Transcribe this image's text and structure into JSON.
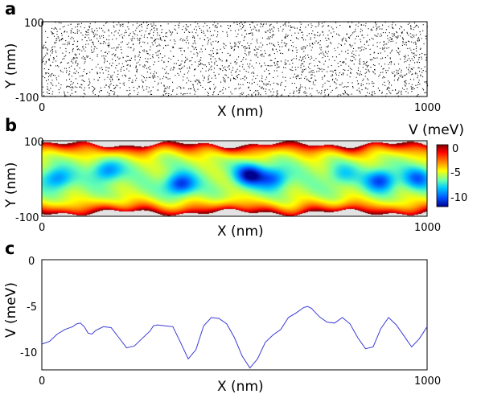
{
  "panels": {
    "a": {
      "label": "a",
      "xlabel": "X (nm)",
      "ylabel": "Y (nm)",
      "x_ticks": [
        "0",
        "1000"
      ],
      "y_ticks": [
        "100",
        "-100"
      ]
    },
    "b": {
      "label": "b",
      "xlabel": "X (nm)",
      "ylabel": "Y (nm)",
      "x_ticks": [
        "0",
        "1000"
      ],
      "y_ticks": [
        "100",
        "-100"
      ],
      "colorbar_label": "V (meV)",
      "colorbar_ticks": [
        "0",
        "-5",
        "-10"
      ]
    },
    "c": {
      "label": "c",
      "xlabel": "X (nm)",
      "ylabel": "V (meV)",
      "x_ticks": [
        "0",
        "1000"
      ],
      "y_ticks": [
        "0",
        "-5",
        "-10"
      ]
    }
  },
  "colors": {
    "line": "#3a3ad8",
    "background_gray": "#e3e3e3",
    "dots": "#000000"
  },
  "chart_data": [
    {
      "type": "scatter",
      "panel": "a",
      "xlabel": "X (nm)",
      "ylabel": "Y (nm)",
      "xlim": [
        0,
        1000
      ],
      "ylim": [
        -100,
        100
      ],
      "description_points": "dense uniform random dopant positions",
      "n_points": 2500
    },
    {
      "type": "heatmap",
      "panel": "b",
      "xlabel": "X (nm)",
      "ylabel": "Y (nm)",
      "xlim": [
        0,
        1000
      ],
      "ylim": [
        -100,
        100
      ],
      "colorbar": {
        "label": "V (meV)",
        "range": [
          -12,
          0
        ],
        "ticks": [
          0,
          -5,
          -10
        ]
      },
      "channel_half_width_nm": 90,
      "minima": [
        {
          "x": 40,
          "y": 0,
          "v": -9.5
        },
        {
          "x": 170,
          "y": 20,
          "v": -9.5
        },
        {
          "x": 360,
          "y": -15,
          "v": -11
        },
        {
          "x": 540,
          "y": 10,
          "v": -11.5
        },
        {
          "x": 600,
          "y": 0,
          "v": -10
        },
        {
          "x": 780,
          "y": 10,
          "v": -8
        },
        {
          "x": 880,
          "y": -5,
          "v": -10.5
        },
        {
          "x": 975,
          "y": 0,
          "v": -9.5
        }
      ]
    },
    {
      "type": "line",
      "panel": "c",
      "xlabel": "X (nm)",
      "ylabel": "V (meV)",
      "xlim": [
        0,
        1000
      ],
      "ylim": [
        -12,
        0
      ],
      "x": [
        0,
        20,
        40,
        60,
        80,
        90,
        100,
        110,
        120,
        130,
        140,
        160,
        180,
        200,
        220,
        240,
        260,
        280,
        290,
        300,
        320,
        340,
        360,
        380,
        400,
        420,
        440,
        460,
        480,
        500,
        520,
        540,
        560,
        580,
        600,
        620,
        640,
        660,
        680,
        690,
        700,
        720,
        740,
        760,
        780,
        800,
        820,
        840,
        860,
        880,
        900,
        920,
        940,
        960,
        980,
        1000
      ],
      "y": [
        -9.2,
        -8.9,
        -8.1,
        -7.6,
        -7.3,
        -7.0,
        -6.9,
        -7.3,
        -8.0,
        -8.1,
        -7.7,
        -7.3,
        -7.4,
        -8.5,
        -9.6,
        -9.4,
        -8.6,
        -7.8,
        -7.2,
        -7.1,
        -7.2,
        -7.3,
        -9.0,
        -10.8,
        -9.8,
        -7.2,
        -6.3,
        -6.4,
        -7.0,
        -8.5,
        -10.5,
        -11.8,
        -10.8,
        -9.0,
        -8.2,
        -7.6,
        -6.3,
        -5.8,
        -5.2,
        -5.1,
        -5.3,
        -6.2,
        -6.8,
        -6.9,
        -6.3,
        -7.0,
        -8.5,
        -9.7,
        -9.5,
        -7.5,
        -6.3,
        -7.1,
        -8.3,
        -9.5,
        -8.6,
        -7.3
      ]
    }
  ]
}
